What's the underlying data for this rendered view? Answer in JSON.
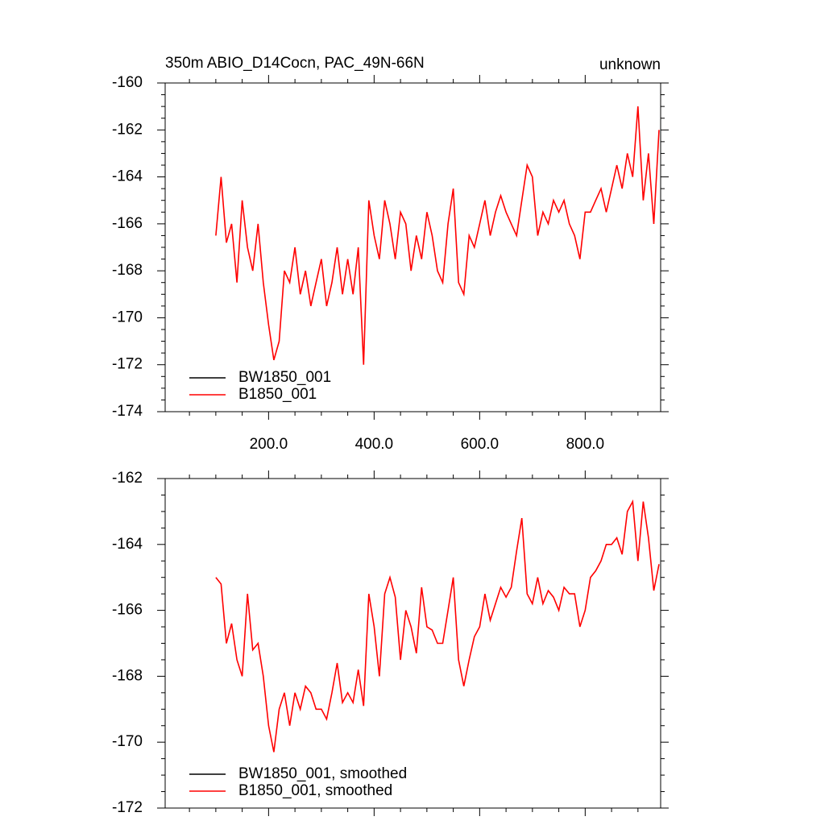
{
  "chart_data": [
    {
      "type": "line",
      "title": "350m ABIO_D14Cocn, PAC_49N-66N",
      "right_title": "unknown",
      "x": [
        100,
        110,
        120,
        130,
        140,
        150,
        160,
        170,
        180,
        190,
        200,
        210,
        220,
        230,
        240,
        250,
        260,
        270,
        280,
        290,
        300,
        310,
        320,
        330,
        340,
        350,
        360,
        370,
        380,
        390,
        400,
        410,
        420,
        430,
        440,
        450,
        460,
        470,
        480,
        490,
        500,
        510,
        520,
        530,
        540,
        550,
        560,
        570,
        580,
        590,
        600,
        610,
        620,
        630,
        640,
        650,
        660,
        670,
        680,
        690,
        700,
        710,
        720,
        730,
        740,
        750,
        760,
        770,
        780,
        790,
        800,
        810,
        820,
        830,
        840,
        850,
        860,
        870,
        880,
        890,
        900,
        910,
        920,
        930,
        940
      ],
      "series": [
        {
          "name": "BW1850_001",
          "color": "#000000",
          "values": [
            null,
            null,
            null,
            null,
            null,
            null,
            null,
            null,
            null,
            null,
            null,
            null,
            null,
            null,
            null,
            null,
            null,
            null,
            null,
            null,
            null,
            null,
            null,
            null,
            null,
            null,
            null,
            null,
            null,
            null,
            null,
            null,
            null,
            null,
            null,
            null,
            null,
            null,
            null,
            null,
            null,
            null,
            null,
            null,
            null,
            null,
            null,
            null,
            null,
            null,
            null,
            null,
            null,
            null,
            null,
            null,
            null,
            null,
            null,
            null,
            null,
            null,
            null,
            null,
            null,
            null,
            null,
            null,
            null,
            null,
            null,
            null,
            null,
            null,
            null,
            null,
            null,
            null,
            null,
            null,
            null,
            null,
            null,
            null,
            null
          ]
        },
        {
          "name": "B1850_001",
          "color": "#ff0000",
          "values": [
            -166.5,
            -164.0,
            -166.8,
            -166.0,
            -168.5,
            -165.0,
            -167.0,
            -168.0,
            -166.0,
            -168.5,
            -170.3,
            -171.8,
            -171.0,
            -168.0,
            -168.5,
            -167.0,
            -169.0,
            -168.0,
            -169.5,
            -168.5,
            -167.5,
            -169.5,
            -168.5,
            -167.0,
            -169.0,
            -167.5,
            -169.0,
            -167.0,
            -172.0,
            -165.0,
            -166.5,
            -167.5,
            -165.0,
            -166.0,
            -167.5,
            -165.5,
            -166.0,
            -168.0,
            -166.5,
            -167.5,
            -165.5,
            -166.5,
            -168.0,
            -168.5,
            -166.0,
            -164.5,
            -168.5,
            -169.0,
            -166.5,
            -167.0,
            -166.0,
            -165.0,
            -166.5,
            -165.5,
            -164.8,
            -165.5,
            -166.0,
            -166.5,
            -165.0,
            -163.5,
            -164.0,
            -166.5,
            -165.5,
            -166.0,
            -165.0,
            -165.5,
            -165.0,
            -166.0,
            -166.5,
            -167.5,
            -165.5,
            -165.5,
            -165.0,
            -164.5,
            -165.5,
            -164.5,
            -163.5,
            -164.5,
            -163.0,
            -164.0,
            -161.0,
            -165.0,
            -163.0,
            -166.0,
            -162.0
          ]
        }
      ],
      "xlim": [
        4,
        943
      ],
      "xticks": [
        {
          "value": 200,
          "label": "200.0"
        },
        {
          "value": 400,
          "label": "400.0"
        },
        {
          "value": 600,
          "label": "600.0"
        },
        {
          "value": 800,
          "label": "800.0"
        }
      ],
      "ylim": [
        -174,
        -160
      ],
      "yticks": [
        -174,
        -172,
        -170,
        -168,
        -166,
        -164,
        -162,
        -160
      ],
      "legend": "lower left"
    },
    {
      "type": "line",
      "x": [
        100,
        110,
        120,
        130,
        140,
        150,
        160,
        170,
        180,
        190,
        200,
        210,
        220,
        230,
        240,
        250,
        260,
        270,
        280,
        290,
        300,
        310,
        320,
        330,
        340,
        350,
        360,
        370,
        380,
        390,
        400,
        410,
        420,
        430,
        440,
        450,
        460,
        470,
        480,
        490,
        500,
        510,
        520,
        530,
        540,
        550,
        560,
        570,
        580,
        590,
        600,
        610,
        620,
        630,
        640,
        650,
        660,
        670,
        680,
        690,
        700,
        710,
        720,
        730,
        740,
        750,
        760,
        770,
        780,
        790,
        800,
        810,
        820,
        830,
        840,
        850,
        860,
        870,
        880,
        890,
        900,
        910,
        920,
        930,
        940
      ],
      "series": [
        {
          "name": "BW1850_001, smoothed",
          "color": "#000000",
          "values": [
            null,
            null,
            null,
            null,
            null,
            null,
            null,
            null,
            null,
            null,
            null,
            null,
            null,
            null,
            null,
            null,
            null,
            null,
            null,
            null,
            null,
            null,
            null,
            null,
            null,
            null,
            null,
            null,
            null,
            null,
            null,
            null,
            null,
            null,
            null,
            null,
            null,
            null,
            null,
            null,
            null,
            null,
            null,
            null,
            null,
            null,
            null,
            null,
            null,
            null,
            null,
            null,
            null,
            null,
            null,
            null,
            null,
            null,
            null,
            null,
            null,
            null,
            null,
            null,
            null,
            null,
            null,
            null,
            null,
            null,
            null,
            null,
            null,
            null,
            null,
            null,
            null,
            null,
            null,
            null,
            null,
            null,
            null,
            null,
            null
          ]
        },
        {
          "name": "B1850_001, smoothed",
          "color": "#ff0000",
          "values": [
            -165.0,
            -165.2,
            -167.0,
            -166.4,
            -167.5,
            -168.0,
            -165.5,
            -167.2,
            -167.0,
            -168.0,
            -169.5,
            -170.3,
            -169.0,
            -168.5,
            -169.5,
            -168.5,
            -169.0,
            -168.3,
            -168.5,
            -169.0,
            -169.0,
            -169.3,
            -168.5,
            -167.6,
            -168.8,
            -168.5,
            -168.8,
            -167.8,
            -168.9,
            -165.5,
            -166.5,
            -168.0,
            -165.5,
            -165.0,
            -165.6,
            -167.5,
            -166.0,
            -166.5,
            -167.3,
            -165.3,
            -166.5,
            -166.6,
            -167.0,
            -167.0,
            -166.0,
            -165.0,
            -167.5,
            -168.3,
            -167.5,
            -166.8,
            -166.5,
            -165.5,
            -166.3,
            -165.8,
            -165.3,
            -165.6,
            -165.3,
            -164.2,
            -163.2,
            -165.5,
            -165.8,
            -165.0,
            -165.8,
            -165.4,
            -165.6,
            -166.0,
            -165.3,
            -165.5,
            -165.5,
            -166.5,
            -166.0,
            -165.0,
            -164.8,
            -164.5,
            -164.0,
            -164.0,
            -163.8,
            -164.3,
            -163.0,
            -162.7,
            -164.5,
            -162.7,
            -163.8,
            -165.4,
            -164.6
          ]
        }
      ],
      "xlim": [
        4,
        943
      ],
      "xticks": [
        200,
        400,
        600,
        800
      ],
      "xtick_labels": false,
      "ylim": [
        -172,
        -162
      ],
      "yticks": [
        -172,
        -170,
        -168,
        -166,
        -164,
        -162
      ],
      "legend": "lower left"
    }
  ]
}
